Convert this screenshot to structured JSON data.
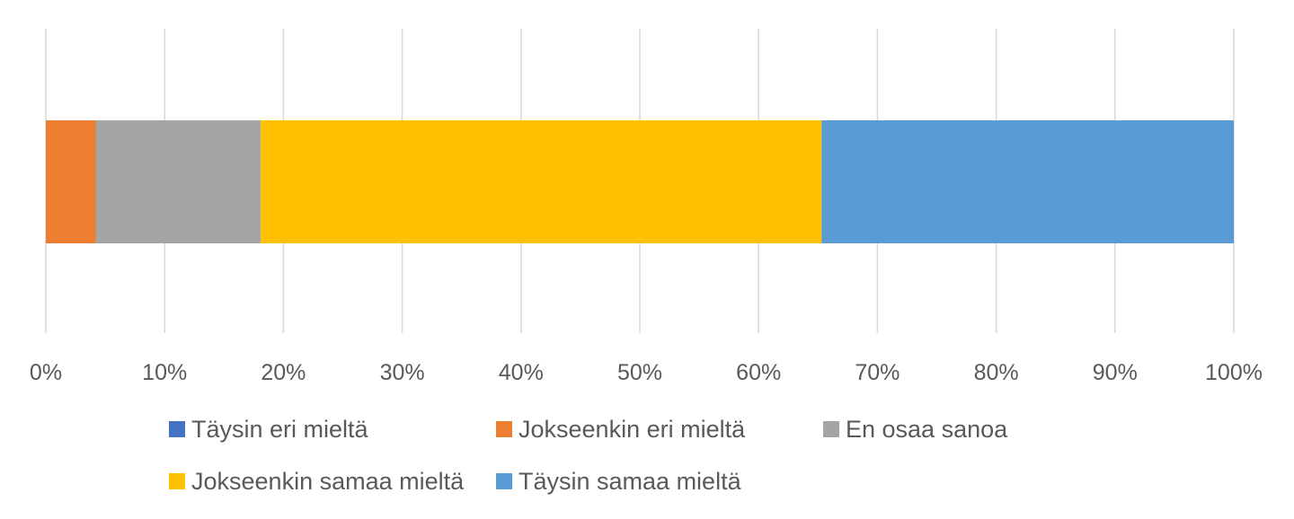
{
  "chart_data": {
    "type": "bar",
    "orientation": "horizontal",
    "stacked": true,
    "categories": [
      ""
    ],
    "series": [
      {
        "name": "Täysin eri mieltä",
        "values": [
          0
        ],
        "color": "#4472C4"
      },
      {
        "name": "Jokseenkin eri mieltä",
        "values": [
          4.2
        ],
        "color": "#ED7D31"
      },
      {
        "name": "En osaa sanoa",
        "values": [
          13.9
        ],
        "color": "#A5A5A5"
      },
      {
        "name": "Jokseenkin samaa mieltä",
        "values": [
          47.2
        ],
        "color": "#FFC000"
      },
      {
        "name": "Täysin samaa mieltä",
        "values": [
          34.7
        ],
        "color": "#5B9BD5"
      }
    ],
    "xlim": [
      0,
      100
    ],
    "x_ticks": [
      "0%",
      "10%",
      "20%",
      "30%",
      "40%",
      "50%",
      "60%",
      "70%",
      "80%",
      "90%",
      "100%"
    ],
    "grid": "vertical",
    "legend_position": "bottom"
  }
}
